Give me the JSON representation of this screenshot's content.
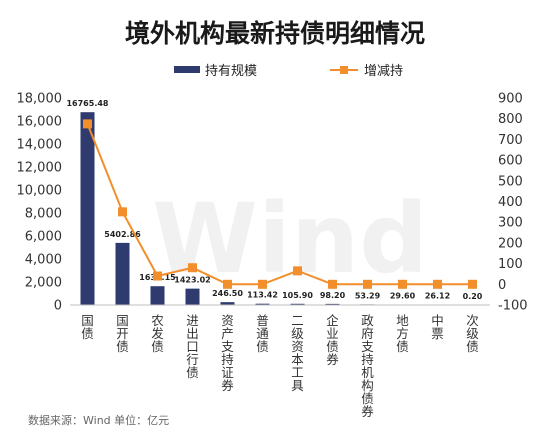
{
  "chart_data": {
    "type": "bar",
    "title": "境外机构最新持债明细情况",
    "categories": [
      "国债",
      "国开债",
      "农发债",
      "进出口行债",
      "资产支持证券",
      "普通债",
      "二级资本工具",
      "企业债券",
      "政府支持机构债券",
      "地方债",
      "中票",
      "次级债"
    ],
    "series": [
      {
        "name": "持有规模",
        "type": "bar",
        "axis": "left",
        "color": "#2f3a6e",
        "values": [
          16765.48,
          5402.86,
          1634.15,
          1423.02,
          246.5,
          113.42,
          105.9,
          98.2,
          53.29,
          29.6,
          26.12,
          0.2
        ],
        "labels": [
          "16765.48",
          "5402.86",
          "1634.15",
          "1423.02",
          "246.50",
          "113.42",
          "105.90",
          "98.20",
          "53.29",
          "29.60",
          "26.12",
          "0.20"
        ]
      },
      {
        "name": "增减持",
        "type": "line",
        "axis": "right",
        "color": "#f28e2b",
        "values": [
          775,
          350,
          40,
          80,
          0,
          0,
          65,
          0,
          0,
          0,
          0,
          0
        ]
      }
    ],
    "left_axis": {
      "min": 0,
      "max": 18000,
      "step": 2000,
      "tick_labels": [
        "0",
        "2,000",
        "4,000",
        "6,000",
        "8,000",
        "10,000",
        "12,000",
        "14,000",
        "16,000",
        "18,000"
      ]
    },
    "right_axis": {
      "min": -100,
      "max": 900,
      "step": 100,
      "tick_labels": [
        "-100",
        "0",
        "100",
        "200",
        "300",
        "400",
        "500",
        "600",
        "700",
        "800",
        "900"
      ]
    },
    "legend_position": "top",
    "grid": false,
    "watermark": "Wind",
    "source_note": "数据来源：Wind   单位：亿元"
  }
}
